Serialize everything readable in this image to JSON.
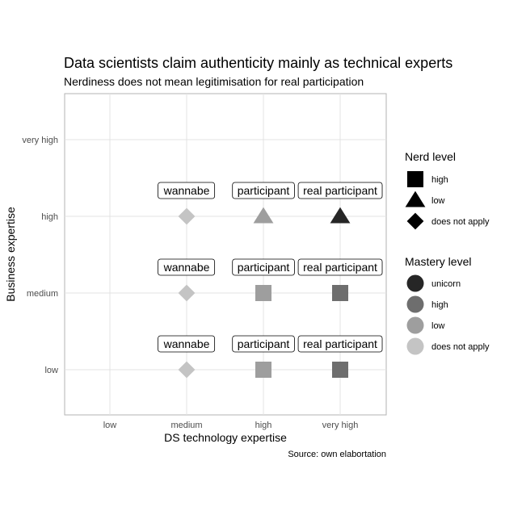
{
  "chart_data": {
    "type": "scatter",
    "title": "Data scientists claim authenticity mainly as technical experts",
    "subtitle": "Nerdiness does not mean legitimisation for real participation",
    "xlabel": "DS technology expertise",
    "ylabel": "Business expertise",
    "caption": "Source: own elabortation",
    "x_categories": [
      "low",
      "medium",
      "high",
      "very high"
    ],
    "y_categories": [
      "low",
      "medium",
      "high",
      "very high"
    ],
    "grid": true,
    "legend_position": "right",
    "points": [
      {
        "x": "medium",
        "y": "low",
        "nerd": "does not apply",
        "mastery": "does not apply",
        "label": "wannabe"
      },
      {
        "x": "high",
        "y": "low",
        "nerd": "high",
        "mastery": "low",
        "label": "participant"
      },
      {
        "x": "very high",
        "y": "low",
        "nerd": "high",
        "mastery": "high",
        "label": "real participant"
      },
      {
        "x": "medium",
        "y": "medium",
        "nerd": "does not apply",
        "mastery": "does not apply",
        "label": "wannabe"
      },
      {
        "x": "high",
        "y": "medium",
        "nerd": "high",
        "mastery": "low",
        "label": "participant"
      },
      {
        "x": "very high",
        "y": "medium",
        "nerd": "high",
        "mastery": "high",
        "label": "real participant"
      },
      {
        "x": "medium",
        "y": "high",
        "nerd": "does not apply",
        "mastery": "does not apply",
        "label": "wannabe"
      },
      {
        "x": "high",
        "y": "high",
        "nerd": "low",
        "mastery": "low",
        "label": "participant"
      },
      {
        "x": "very high",
        "y": "high",
        "nerd": "low",
        "mastery": "unicorn",
        "label": "real participant"
      }
    ],
    "legend_nerd": {
      "title": "Nerd level",
      "items": [
        {
          "label": "high",
          "shape": "square"
        },
        {
          "label": "low",
          "shape": "triangle"
        },
        {
          "label": "does not apply",
          "shape": "diamond"
        }
      ]
    },
    "legend_mastery": {
      "title": "Mastery level",
      "items": [
        {
          "label": "unicorn",
          "color": "#262626"
        },
        {
          "label": "high",
          "color": "#6e6e6e"
        },
        {
          "label": "low",
          "color": "#9e9e9e"
        },
        {
          "label": "does not apply",
          "color": "#c4c4c4"
        }
      ]
    }
  }
}
